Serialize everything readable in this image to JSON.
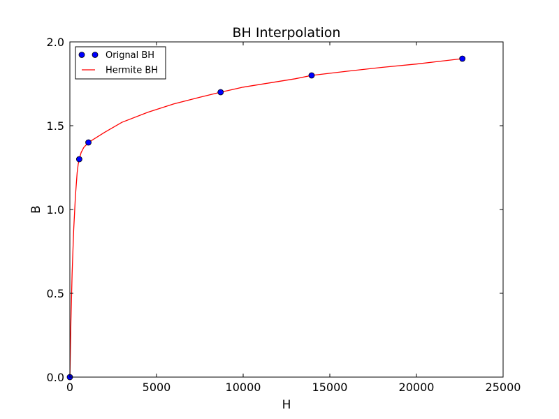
{
  "chart_data": {
    "type": "line",
    "title": "BH Interpolation",
    "xlabel": "H",
    "ylabel": "B",
    "xlim": [
      0,
      25000
    ],
    "ylim": [
      0.0,
      2.0
    ],
    "x_ticks": [
      "0",
      "5000",
      "10000",
      "15000",
      "20000",
      "25000"
    ],
    "x_tick_values": [
      0,
      5000,
      10000,
      15000,
      20000,
      25000
    ],
    "y_ticks": [
      "0.0",
      "0.5",
      "1.0",
      "1.5",
      "2.0"
    ],
    "y_tick_values": [
      0.0,
      0.5,
      1.0,
      1.5,
      2.0
    ],
    "grid": false,
    "legend_position": "top-left",
    "series": [
      {
        "name": "Orignal BH",
        "kind": "scatter",
        "color": "#0000ff",
        "x": [
          0,
          540,
          1070,
          8700,
          13950,
          22650
        ],
        "y": [
          0.0,
          1.3,
          1.4,
          1.7,
          1.8,
          1.9
        ]
      },
      {
        "name": "Hermite BH",
        "kind": "line",
        "color": "#ff0000",
        "x": [
          0,
          60,
          130,
          220,
          320,
          420,
          480,
          540,
          650,
          800,
          1070,
          2000,
          3000,
          4500,
          6000,
          7500,
          8700,
          10000,
          11500,
          13000,
          13950,
          16000,
          18000,
          20000,
          22650
        ],
        "y": [
          0.0,
          0.33,
          0.62,
          0.88,
          1.08,
          1.22,
          1.27,
          1.3,
          1.34,
          1.37,
          1.4,
          1.46,
          1.52,
          1.58,
          1.63,
          1.67,
          1.7,
          1.73,
          1.755,
          1.78,
          1.8,
          1.825,
          1.848,
          1.868,
          1.9
        ]
      }
    ]
  }
}
